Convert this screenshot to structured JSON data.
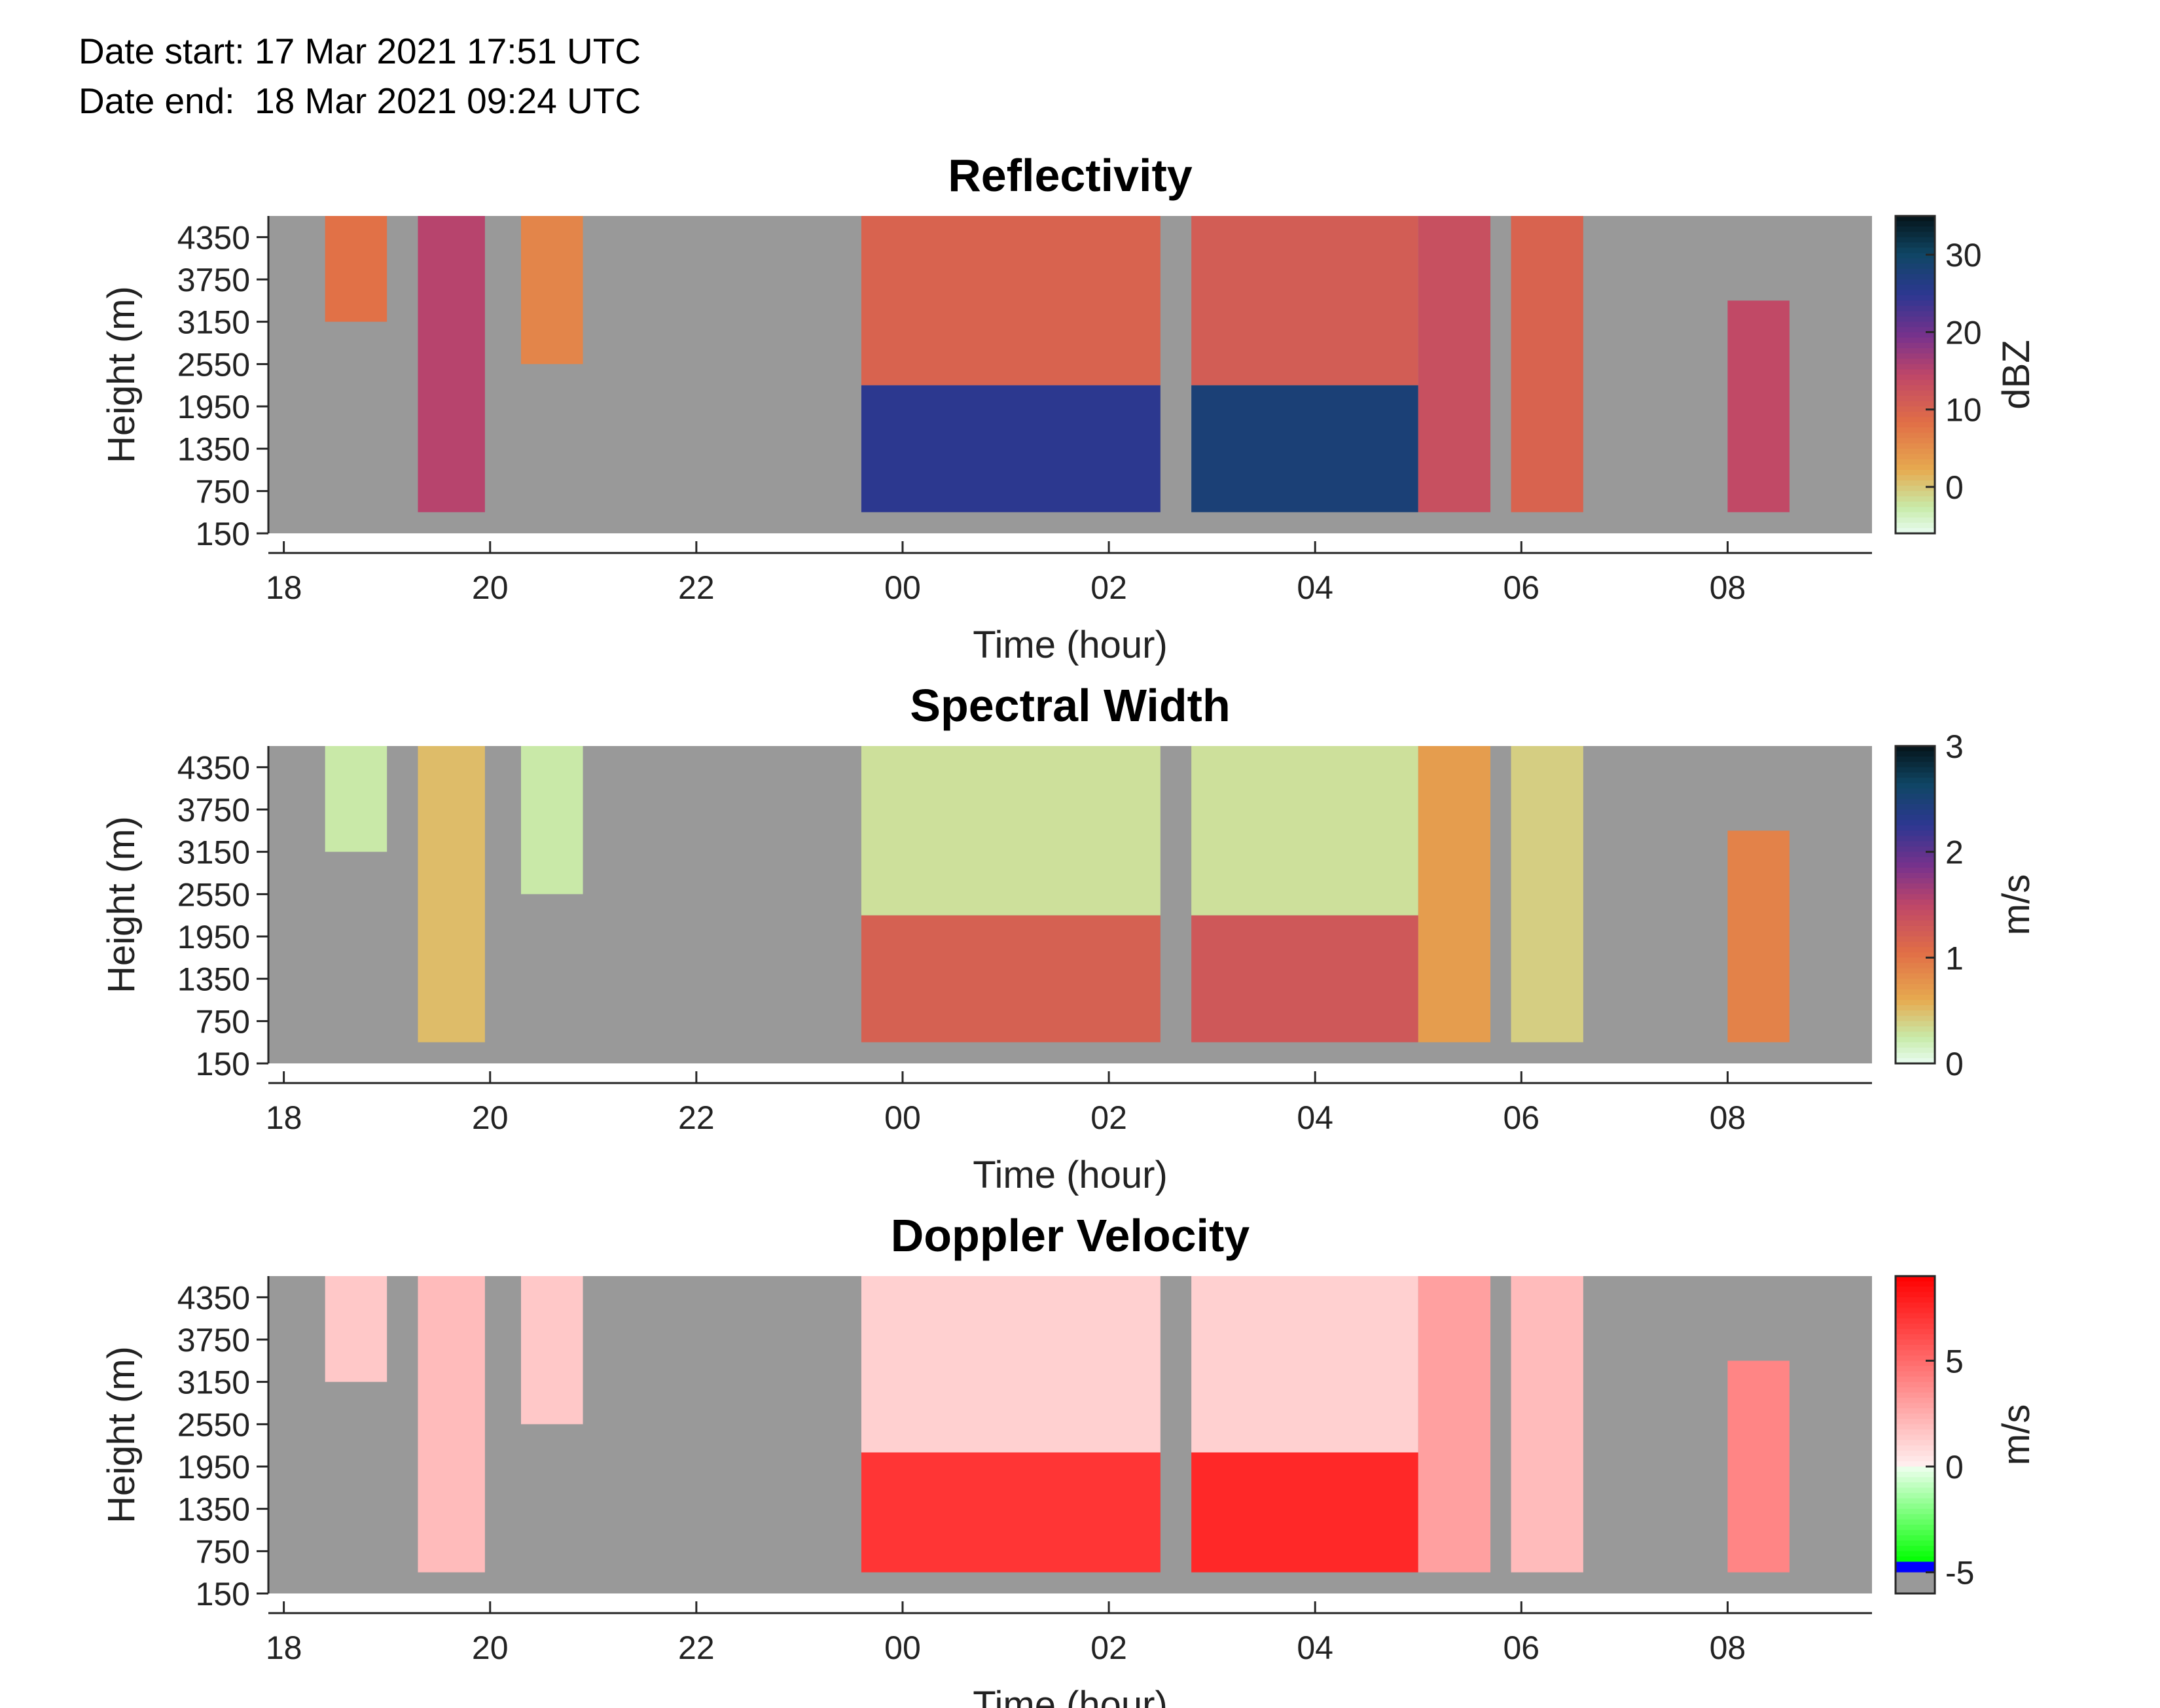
{
  "header": {
    "date_start": "Date start: 17 Mar 2021 17:51 UTC",
    "date_end": "Date end:  18 Mar 2021 09:24 UTC"
  },
  "colors": {
    "missing": "#999999",
    "axis": "#262626"
  },
  "chart_data": [
    {
      "type": "heatmap",
      "title": "Reflectivity",
      "xlabel": "Time (hour)",
      "ylabel": "Height (m)",
      "x_ticks": [
        "18",
        "20",
        "22",
        "00",
        "02",
        "04",
        "06",
        "08"
      ],
      "y_ticks": [
        "4350",
        "3750",
        "3150",
        "2550",
        "1950",
        "1350",
        "750",
        "150"
      ],
      "colorbar_label": "dBZ",
      "colorbar_ticks": [
        "30",
        "20",
        "10",
        "0"
      ],
      "colorbar_range": [
        -6,
        35
      ],
      "colormap": "cmocean-thermal-like",
      "missing_color": "#999999",
      "x_range_hours": [
        17.85,
        33.4
      ],
      "y_range_m": [
        150,
        4650
      ],
      "cloud_regions": [
        {
          "start_hour": 18.4,
          "end_hour": 19.0,
          "base_m": 3150,
          "top_m": 4650,
          "value": 8
        },
        {
          "start_hour": 19.3,
          "end_hour": 19.95,
          "base_m": 450,
          "top_m": 4650,
          "value": 15
        },
        {
          "start_hour": 20.3,
          "end_hour": 20.9,
          "base_m": 2550,
          "top_m": 4650,
          "value": 6
        },
        {
          "start_hour": 23.6,
          "end_hour": 26.5,
          "base_m": 450,
          "top_m": 2250,
          "value": 25
        },
        {
          "start_hour": 23.6,
          "end_hour": 26.5,
          "base_m": 2250,
          "top_m": 4650,
          "value": 10
        },
        {
          "start_hour": 26.8,
          "end_hour": 29.0,
          "base_m": 450,
          "top_m": 2250,
          "value": 28
        },
        {
          "start_hour": 26.8,
          "end_hour": 29.0,
          "base_m": 2250,
          "top_m": 4650,
          "value": 11
        },
        {
          "start_hour": 29.0,
          "end_hour": 29.7,
          "base_m": 450,
          "top_m": 4650,
          "value": 13
        },
        {
          "start_hour": 29.9,
          "end_hour": 30.6,
          "base_m": 450,
          "top_m": 4650,
          "value": 10
        },
        {
          "start_hour": 32.0,
          "end_hour": 32.6,
          "base_m": 450,
          "top_m": 3450,
          "value": 14
        }
      ]
    },
    {
      "type": "heatmap",
      "title": "Spectral Width",
      "xlabel": "Time (hour)",
      "ylabel": "Height (m)",
      "x_ticks": [
        "18",
        "20",
        "22",
        "00",
        "02",
        "04",
        "06",
        "08"
      ],
      "y_ticks": [
        "4350",
        "3750",
        "3150",
        "2550",
        "1950",
        "1350",
        "750",
        "150"
      ],
      "colorbar_label": "m/s",
      "colorbar_ticks": [
        "3",
        "2",
        "1",
        "0"
      ],
      "colorbar_range": [
        0,
        3
      ],
      "colormap": "cmocean-thermal-like",
      "missing_color": "#999999",
      "x_range_hours": [
        17.85,
        33.4
      ],
      "y_range_m": [
        150,
        4650
      ],
      "cloud_regions": [
        {
          "start_hour": 18.4,
          "end_hour": 19.0,
          "base_m": 3150,
          "top_m": 4650,
          "value": 0.25
        },
        {
          "start_hour": 19.3,
          "end_hour": 19.95,
          "base_m": 450,
          "top_m": 4650,
          "value": 0.5
        },
        {
          "start_hour": 20.3,
          "end_hour": 20.9,
          "base_m": 2550,
          "top_m": 4650,
          "value": 0.25
        },
        {
          "start_hour": 23.6,
          "end_hour": 26.5,
          "base_m": 450,
          "top_m": 2250,
          "value": 1.2
        },
        {
          "start_hour": 23.6,
          "end_hour": 26.5,
          "base_m": 2250,
          "top_m": 4650,
          "value": 0.3
        },
        {
          "start_hour": 26.8,
          "end_hour": 29.0,
          "base_m": 450,
          "top_m": 2250,
          "value": 1.3
        },
        {
          "start_hour": 26.8,
          "end_hour": 29.0,
          "base_m": 2250,
          "top_m": 4650,
          "value": 0.3
        },
        {
          "start_hour": 29.0,
          "end_hour": 29.7,
          "base_m": 450,
          "top_m": 4650,
          "value": 0.7
        },
        {
          "start_hour": 29.9,
          "end_hour": 30.6,
          "base_m": 450,
          "top_m": 4650,
          "value": 0.4
        },
        {
          "start_hour": 32.0,
          "end_hour": 32.6,
          "base_m": 450,
          "top_m": 3450,
          "value": 0.9
        }
      ]
    },
    {
      "type": "heatmap",
      "title": "Doppler Velocity",
      "xlabel": "Time (hour)",
      "ylabel": "Height (m)",
      "x_ticks": [
        "18",
        "20",
        "22",
        "00",
        "02",
        "04",
        "06",
        "08"
      ],
      "y_ticks": [
        "4350",
        "3750",
        "3150",
        "2550",
        "1950",
        "1350",
        "750",
        "150"
      ],
      "colorbar_label": "m/s",
      "colorbar_ticks": [
        "5",
        "0",
        "-5"
      ],
      "colorbar_range": [
        -6,
        9
      ],
      "colormap": "green-white-red",
      "missing_color": "#999999",
      "x_range_hours": [
        17.85,
        33.4
      ],
      "y_range_m": [
        150,
        4650
      ],
      "cloud_regions": [
        {
          "start_hour": 18.4,
          "end_hour": 19.0,
          "base_m": 3150,
          "top_m": 4650,
          "value": 1.5
        },
        {
          "start_hour": 19.3,
          "end_hour": 19.95,
          "base_m": 450,
          "top_m": 4650,
          "value": 2
        },
        {
          "start_hour": 20.3,
          "end_hour": 20.9,
          "base_m": 2550,
          "top_m": 4650,
          "value": 1.5
        },
        {
          "start_hour": 23.6,
          "end_hour": 26.5,
          "base_m": 450,
          "top_m": 2150,
          "value": 7
        },
        {
          "start_hour": 23.6,
          "end_hour": 26.5,
          "base_m": 2150,
          "top_m": 4650,
          "value": 1.2
        },
        {
          "start_hour": 26.8,
          "end_hour": 29.0,
          "base_m": 450,
          "top_m": 2150,
          "value": 7.5
        },
        {
          "start_hour": 26.8,
          "end_hour": 29.0,
          "base_m": 2150,
          "top_m": 4650,
          "value": 1.2
        },
        {
          "start_hour": 29.0,
          "end_hour": 29.7,
          "base_m": 450,
          "top_m": 4650,
          "value": 3
        },
        {
          "start_hour": 29.9,
          "end_hour": 30.6,
          "base_m": 450,
          "top_m": 4650,
          "value": 2
        },
        {
          "start_hour": 32.0,
          "end_hour": 32.6,
          "base_m": 450,
          "top_m": 3450,
          "value": 4
        }
      ]
    }
  ]
}
